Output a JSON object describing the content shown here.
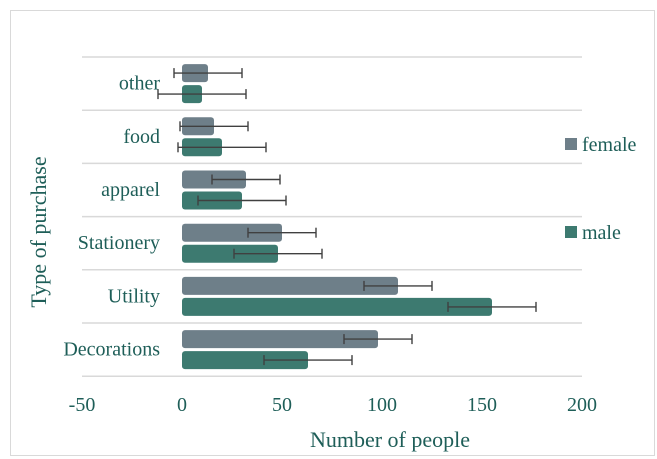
{
  "chart_data": {
    "type": "bar",
    "orientation": "horizontal",
    "title": "",
    "xlabel": "Number of people",
    "ylabel": "Type of purchase",
    "xlim": [
      -50,
      200
    ],
    "xticks": [
      "-50",
      "0",
      "50",
      "100",
      "150",
      "200"
    ],
    "categories": [
      "other",
      "food",
      "apparel",
      "Stationery",
      "Utility",
      "Decorations"
    ],
    "series": [
      {
        "name": "female",
        "color": "#6e7f89",
        "values": [
          13,
          16,
          32,
          50,
          108,
          98
        ],
        "error": [
          17,
          17,
          17,
          17,
          17,
          17
        ]
      },
      {
        "name": "male",
        "color": "#3d7a70",
        "values": [
          10,
          20,
          30,
          48,
          155,
          63
        ],
        "error": [
          22,
          22,
          22,
          22,
          22,
          22
        ]
      }
    ],
    "grid": "horizontal category separators",
    "legend_position": "right"
  }
}
